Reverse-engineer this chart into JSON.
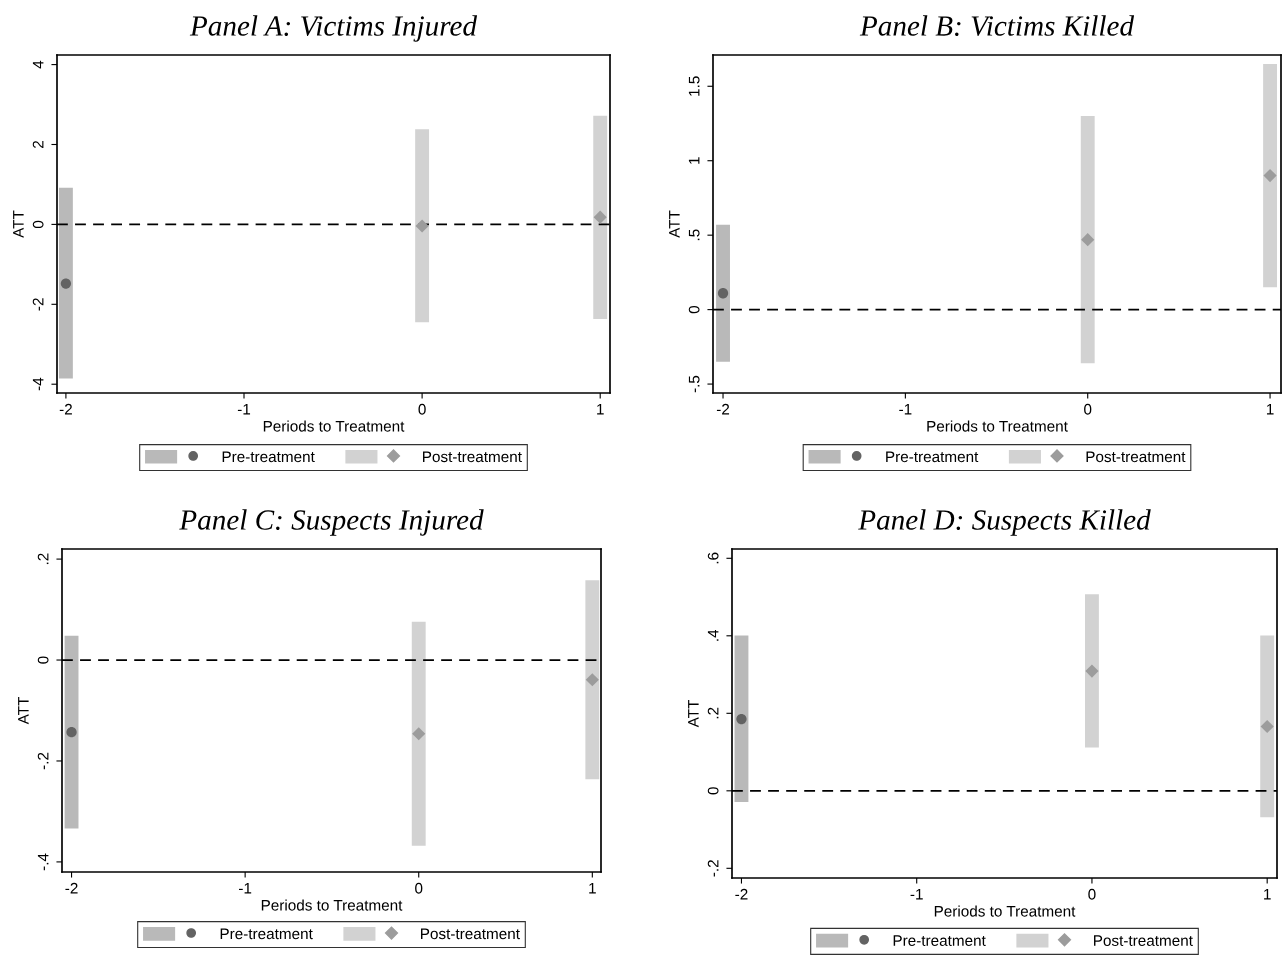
{
  "chart_data": [
    {
      "type": "scatter",
      "title": "Panel A: Victims Injured",
      "xlabel": "Periods to Treatment",
      "ylabel": "ATT",
      "xlim": [
        -2.05,
        1.055
      ],
      "ylim": [
        -4.22,
        4.24
      ],
      "xticks": [
        -2,
        -1,
        0,
        1
      ],
      "yticks": [
        -4,
        -2,
        0,
        2,
        4
      ],
      "grid": false,
      "legend": "bottom",
      "ref_lines": [
        {
          "axis": "y",
          "value": 0,
          "color": "#000000",
          "line_style": "dashed"
        }
      ],
      "series": [
        {
          "name": "Pre-treatment",
          "color": "#636363",
          "marker": "circle",
          "x": [
            -2
          ],
          "values": [
            -1.48
          ],
          "errors": [
            [
              -3.86,
              0.92
            ]
          ]
        },
        {
          "name": "Post-treatment",
          "color": "#9c9c9c",
          "marker": "diamond",
          "x": [
            0,
            1
          ],
          "values": [
            -0.04,
            0.18
          ],
          "errors": [
            [
              -2.45,
              2.38
            ],
            [
              -2.37,
              2.72
            ]
          ]
        }
      ]
    },
    {
      "type": "scatter",
      "title": "Panel B: Victims Killed",
      "xlabel": "Periods to Treatment",
      "ylabel": "ATT",
      "xlim": [
        -2.055,
        1.06
      ],
      "ylim": [
        -0.56,
        1.71
      ],
      "xticks": [
        -2,
        -1,
        0,
        1
      ],
      "yticks": [
        {
          "value": -0.5,
          "label": "-.5"
        },
        0,
        {
          "value": 0.5,
          "label": ".5"
        },
        1,
        1.5
      ],
      "grid": false,
      "legend": "bottom",
      "ref_lines": [
        {
          "axis": "y",
          "value": 0,
          "color": "#000000",
          "line_style": "dashed"
        }
      ],
      "series": [
        {
          "name": "Pre-treatment",
          "color": "#636363",
          "marker": "circle",
          "x": [
            -2
          ],
          "values": [
            0.11
          ],
          "errors": [
            [
              -0.35,
              0.57
            ]
          ]
        },
        {
          "name": "Post-treatment",
          "color": "#9c9c9c",
          "marker": "diamond",
          "x": [
            0,
            1
          ],
          "values": [
            0.47,
            0.9
          ],
          "errors": [
            [
              -0.36,
              1.3
            ],
            [
              0.15,
              1.65
            ]
          ]
        }
      ]
    },
    {
      "type": "scatter",
      "title": "Panel C: Suspects Injured",
      "xlabel": "Periods to Treatment",
      "ylabel": "ATT",
      "xlim": [
        -2.055,
        1.05
      ],
      "ylim": [
        -0.42,
        0.22
      ],
      "xticks": [
        -2,
        -1,
        0,
        1
      ],
      "yticks": [
        {
          "value": -0.4,
          "label": "-.4"
        },
        {
          "value": -0.2,
          "label": "-.2"
        },
        0,
        {
          "value": 0.2,
          "label": ".2"
        }
      ],
      "grid": false,
      "legend": "bottom",
      "ref_lines": [
        {
          "axis": "y",
          "value": 0,
          "color": "#000000",
          "line_style": "dashed"
        }
      ],
      "series": [
        {
          "name": "Pre-treatment",
          "color": "#636363",
          "marker": "circle",
          "x": [
            -2
          ],
          "values": [
            -0.143
          ],
          "errors": [
            [
              -0.334,
              0.048
            ]
          ]
        },
        {
          "name": "Post-treatment",
          "color": "#9c9c9c",
          "marker": "diamond",
          "x": [
            0,
            1
          ],
          "values": [
            -0.146,
            -0.039
          ],
          "errors": [
            [
              -0.368,
              0.076
            ],
            [
              -0.236,
              0.158
            ]
          ]
        }
      ]
    },
    {
      "type": "scatter",
      "title": "Panel D: Suspects Killed",
      "xlabel": "Periods to Treatment",
      "ylabel": "ATT",
      "xlim": [
        -2.054,
        1.056
      ],
      "ylim": [
        -0.225,
        0.624
      ],
      "xticks": [
        -2,
        -1,
        0,
        1
      ],
      "yticks": [
        {
          "value": -0.2,
          "label": "-.2"
        },
        0,
        {
          "value": 0.2,
          "label": ".2"
        },
        {
          "value": 0.4,
          "label": ".4"
        },
        {
          "value": 0.6,
          "label": ".6"
        }
      ],
      "grid": false,
      "legend": "bottom",
      "ref_lines": [
        {
          "axis": "y",
          "value": 0,
          "color": "#000000",
          "line_style": "dashed"
        }
      ],
      "series": [
        {
          "name": "Pre-treatment",
          "color": "#636363",
          "marker": "circle",
          "x": [
            -2
          ],
          "values": [
            0.185
          ],
          "errors": [
            [
              -0.029,
              0.401
            ]
          ]
        },
        {
          "name": "Post-treatment",
          "color": "#9c9c9c",
          "marker": "diamond",
          "x": [
            0,
            1
          ],
          "values": [
            0.309,
            0.166
          ],
          "errors": [
            [
              0.112,
              0.507
            ],
            [
              -0.068,
              0.401
            ]
          ]
        }
      ]
    }
  ]
}
